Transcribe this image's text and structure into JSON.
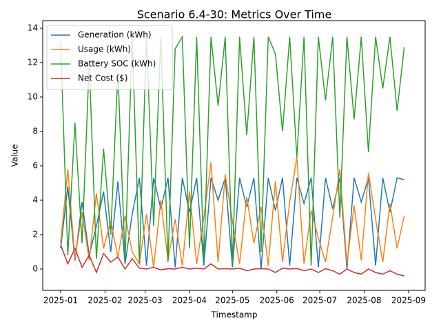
{
  "chart_data": {
    "type": "line",
    "title": "Scenario 6.4-30: Metrics Over Time",
    "x_label": "Timestamp",
    "y_label": "Value",
    "x": [
      0,
      5,
      10,
      15,
      20,
      25,
      30,
      35,
      40,
      45,
      50,
      55,
      60,
      65,
      70,
      75,
      80,
      85,
      90,
      95,
      100,
      105,
      110,
      115,
      120,
      125,
      130,
      135,
      140,
      145,
      150,
      155,
      160,
      165,
      170,
      175,
      180,
      185,
      190,
      195,
      200,
      205,
      210,
      215,
      220,
      225,
      230,
      235,
      240
    ],
    "series": [
      {
        "name": "Generation (kWh)",
        "color": "#1f77b4",
        "values": [
          1.2,
          4.8,
          0.5,
          3.9,
          0.8,
          2.5,
          4.5,
          1.0,
          5.1,
          0.3,
          3.2,
          5.3,
          0.2,
          5.3,
          3.5,
          5.3,
          0.1,
          5.3,
          3.3,
          5.3,
          0.2,
          5.3,
          4.0,
          5.3,
          0.1,
          5.3,
          3.6,
          5.3,
          0.0,
          5.3,
          3.4,
          5.3,
          0.2,
          5.3,
          3.8,
          5.3,
          0.1,
          5.3,
          3.5,
          5.3,
          0.0,
          5.3,
          3.9,
          5.3,
          0.2,
          5.3,
          3.3,
          5.3,
          5.2
        ]
      },
      {
        "name": "Usage (kWh)",
        "color": "#ff7f0e",
        "values": [
          1.5,
          5.8,
          0.6,
          3.3,
          0.5,
          4.4,
          1.2,
          2.8,
          0.7,
          3.1,
          1.0,
          0.3,
          3.2,
          0.1,
          4.0,
          0.5,
          2.9,
          0.2,
          4.5,
          0.3,
          3.0,
          6.2,
          0.4,
          5.5,
          2.8,
          0.3,
          4.2,
          1.5,
          3.6,
          0.2,
          5.1,
          0.4,
          3.9,
          6.5,
          0.3,
          3.4,
          1.8,
          0.4,
          3.0,
          5.8,
          0.3,
          3.7,
          0.5,
          5.6,
          2.9,
          0.4,
          3.8,
          1.2,
          3.1
        ]
      },
      {
        "name": "Battery SOC (kWh)",
        "color": "#2ca02c",
        "values": [
          13.2,
          0.8,
          8.5,
          1.5,
          12.0,
          0.6,
          7.0,
          2.0,
          11.5,
          0.5,
          13.5,
          0.3,
          13.5,
          2.5,
          13.5,
          0.4,
          12.8,
          13.5,
          1.2,
          13.5,
          0.5,
          13.5,
          9.5,
          13.5,
          0.3,
          13.5,
          7.8,
          13.5,
          1.0,
          13.5,
          12.5,
          8.0,
          13.5,
          6.5,
          13.5,
          0.2,
          13.5,
          9.8,
          13.5,
          3.0,
          13.5,
          8.7,
          13.5,
          6.8,
          13.5,
          10.5,
          13.5,
          9.2,
          12.9
        ]
      },
      {
        "name": "Net Cost ($)",
        "color": "#d62728",
        "values": [
          1.4,
          0.3,
          1.2,
          0.1,
          0.8,
          -0.2,
          0.9,
          0.4,
          0.7,
          0.0,
          0.6,
          0.05,
          0.0,
          0.1,
          -0.05,
          0.02,
          0.0,
          0.1,
          0.0,
          0.05,
          0.0,
          0.3,
          0.0,
          0.02,
          0.0,
          0.05,
          -0.1,
          0.0,
          0.02,
          0.0,
          -0.2,
          0.05,
          0.0,
          0.03,
          -0.1,
          0.0,
          -0.2,
          0.02,
          -0.1,
          -0.3,
          0.0,
          -0.2,
          -0.3,
          0.0,
          -0.2,
          -0.3,
          -0.1,
          -0.3,
          -0.4
        ]
      }
    ],
    "xlim": [
      -12.5,
      254.6
    ],
    "xticks": [
      {
        "value": 0,
        "label": "2025-01"
      },
      {
        "value": 31,
        "label": "2025-02"
      },
      {
        "value": 59,
        "label": "2025-03"
      },
      {
        "value": 90,
        "label": "2025-04"
      },
      {
        "value": 120,
        "label": "2025-05"
      },
      {
        "value": 151,
        "label": "2025-06"
      },
      {
        "value": 181,
        "label": "2025-07"
      },
      {
        "value": 212,
        "label": "2025-08"
      },
      {
        "value": 243,
        "label": "2025-09"
      }
    ],
    "ylim": [
      -1.24,
      14.44
    ],
    "yticks": [
      0,
      2,
      4,
      6,
      8,
      10,
      12,
      14
    ],
    "legend": "upper left"
  }
}
